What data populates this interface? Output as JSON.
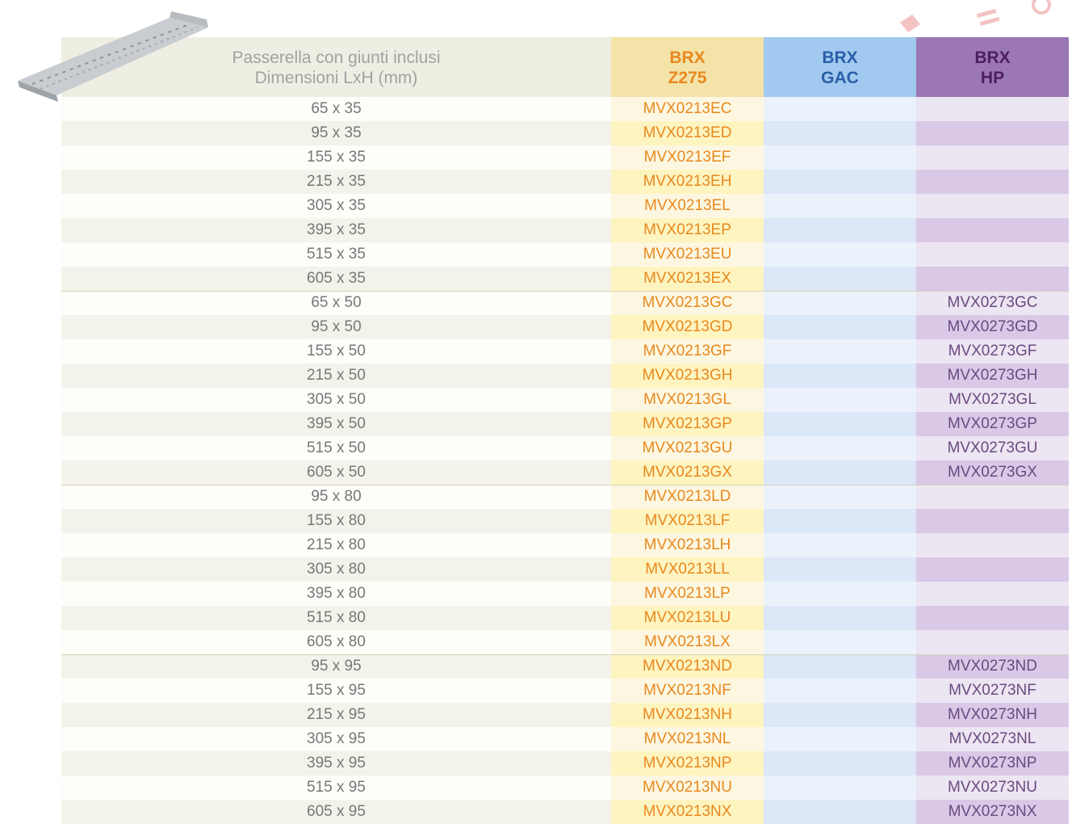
{
  "header": {
    "title": [
      "Passerella con giunti inclusi",
      "Dimensioni LxH (mm)"
    ],
    "columns": [
      [
        "BRX",
        "Z275"
      ],
      [
        "BRX",
        "GAC"
      ],
      [
        "BRX",
        "HP"
      ]
    ]
  },
  "table": {
    "rows": [
      [
        "65 x 35",
        "MVX0213EC"
      ],
      [
        "95 x 35",
        "MVX0213ED"
      ],
      [
        "155 x 35",
        "MVX0213EF"
      ],
      [
        "215 x 35",
        "MVX0213EH"
      ],
      [
        "305 x 35",
        "MVX0213EL"
      ],
      [
        "395 x 35",
        "MVX0213EP"
      ],
      [
        "515 x 35",
        "MVX0213EU"
      ],
      [
        "605 x 35",
        "MVX0213EX"
      ],
      [
        "65 x 50",
        "MVX0213GC",
        "MVX0273GC"
      ],
      [
        "95 x 50",
        "MVX0213GD",
        "MVX0273GD"
      ],
      [
        "155 x 50",
        "MVX0213GF",
        "MVX0273GF"
      ],
      [
        "215 x 50",
        "MVX0213GH",
        "MVX0273GH"
      ],
      [
        "305 x 50",
        "MVX0213GL",
        "MVX0273GL"
      ],
      [
        "395 x 50",
        "MVX0213GP",
        "MVX0273GP"
      ],
      [
        "515 x 50",
        "MVX0213GU",
        "MVX0273GU"
      ],
      [
        "605 x 50",
        "MVX0213GX",
        "MVX0273GX"
      ],
      [
        "95 x 80",
        "MVX0213LD"
      ],
      [
        "155 x 80",
        "MVX0213LF"
      ],
      [
        "215 x 80",
        "MVX0213LH"
      ],
      [
        "305 x 80",
        "MVX0213LL"
      ],
      [
        "395 x 80",
        "MVX0213LP"
      ],
      [
        "515 x 80",
        "MVX0213LU"
      ],
      [
        "605 x 80",
        "MVX0213LX"
      ],
      [
        "95 x 95",
        "MVX0213ND",
        "MVX0273ND"
      ],
      [
        "155 x 95",
        "MVX0213NF",
        "MVX0273NF"
      ],
      [
        "215 x 95",
        "MVX0213NH",
        "MVX0273NH"
      ],
      [
        "305 x 95",
        "MVX0213NL",
        "MVX0273NL"
      ],
      [
        "395 x 95",
        "MVX0213NP",
        "MVX0273NP"
      ],
      [
        "515 x 95",
        "MVX0213NU",
        "MVX0273NU"
      ],
      [
        "605 x 95",
        "MVX0213NX",
        "MVX0273NX"
      ]
    ]
  }
}
